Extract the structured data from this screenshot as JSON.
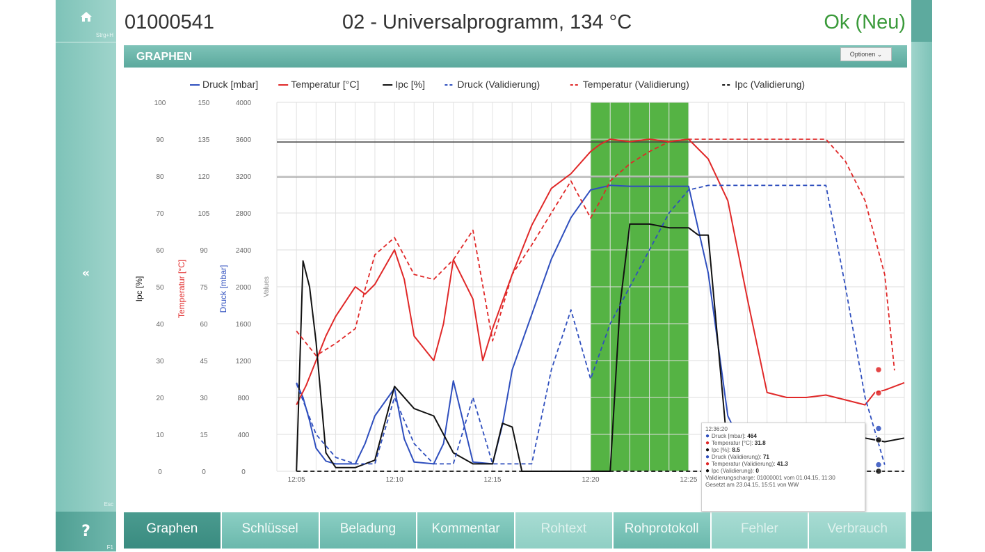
{
  "sidebar": {
    "home_shortcut": "Strg+H",
    "back_shortcut": "Esc",
    "help_label": "?",
    "help_shortcut": "F1",
    "back_glyph": "«"
  },
  "header": {
    "batch_id": "01000541",
    "program": "02 - Universalprogramm, 134 °C",
    "status": "Ok (Neu)"
  },
  "panel": {
    "title": "GRAPHEN",
    "options_label": "Optionen ⌄"
  },
  "chart_data": {
    "type": "line",
    "legend": [
      "Druck [mbar]",
      "Temperatur [°C]",
      "Ipc [%]",
      "Druck (Validierung)",
      "Temperatur (Validierung)",
      "Ipc (Validierung)"
    ],
    "axes": {
      "ipc": {
        "label": "Ipc [%]",
        "ticks": [
          "0",
          "10",
          "20",
          "30",
          "40",
          "50",
          "60",
          "70",
          "80",
          "90",
          "100"
        ],
        "range": [
          0,
          100
        ]
      },
      "temperature": {
        "label": "Temperatur [°C]",
        "ticks": [
          "0",
          "15",
          "30",
          "45",
          "60",
          "75",
          "90",
          "105",
          "120",
          "135",
          "150"
        ],
        "range": [
          0,
          150
        ]
      },
      "pressure": {
        "label": "Druck [mbar]",
        "ticks": [
          "0",
          "400",
          "800",
          "1200",
          "1600",
          "2000",
          "2400",
          "2800",
          "3200",
          "3600",
          "4000"
        ],
        "range": [
          0,
          4000
        ]
      },
      "values_label": "Values",
      "x_label": "",
      "x_ticks": [
        "12:05",
        "12:10",
        "12:15",
        "12:20",
        "12:25"
      ],
      "x_range": [
        "12:04",
        "12:36"
      ]
    },
    "grid": true,
    "colors": {
      "pressure": "#2f4fbe",
      "temperature": "#e02828",
      "ipc": "#111111",
      "plateau": "#4caf3a"
    },
    "plateau": {
      "start": "12:20",
      "end": "12:25"
    },
    "reference_lines_mbar": [
      3570,
      3190
    ],
    "series": [
      {
        "name": "Druck [mbar]",
        "unit": "mbar",
        "style": "solid",
        "color": "#2f4fbe",
        "points": [
          [
            "12:05",
            960
          ],
          [
            "12:05",
            800
          ],
          [
            "12:05",
            550
          ],
          [
            "12:06",
            250
          ],
          [
            "12:06",
            110
          ],
          [
            "12:07",
            80
          ],
          [
            "12:08",
            80
          ],
          [
            "12:08",
            300
          ],
          [
            "12:09",
            600
          ],
          [
            "12:10",
            900
          ],
          [
            "12:10",
            350
          ],
          [
            "12:11",
            100
          ],
          [
            "12:12",
            80
          ],
          [
            "12:12",
            300
          ],
          [
            "12:13",
            980
          ],
          [
            "12:14",
            100
          ],
          [
            "12:15",
            80
          ],
          [
            "12:15",
            500
          ],
          [
            "12:16",
            1100
          ],
          [
            "12:17",
            1700
          ],
          [
            "12:18",
            2300
          ],
          [
            "12:19",
            2750
          ],
          [
            "12:20",
            3050
          ],
          [
            "12:21",
            3100
          ],
          [
            "12:22",
            3090
          ],
          [
            "12:23",
            3090
          ],
          [
            "12:24",
            3090
          ],
          [
            "12:25",
            3090
          ],
          [
            "12:26",
            2150
          ],
          [
            "12:27",
            600
          ],
          [
            "12:27",
            380
          ]
        ]
      },
      {
        "name": "Temperatur [°C]",
        "unit": "°C",
        "style": "solid",
        "color": "#e02828",
        "points": [
          [
            "12:05",
            27
          ],
          [
            "12:05",
            35
          ],
          [
            "12:06",
            45
          ],
          [
            "12:06",
            55
          ],
          [
            "12:07",
            63
          ],
          [
            "12:08",
            75
          ],
          [
            "12:08",
            72
          ],
          [
            "12:09",
            76
          ],
          [
            "12:10",
            90
          ],
          [
            "12:10",
            78
          ],
          [
            "12:11",
            55
          ],
          [
            "12:12",
            45
          ],
          [
            "12:12",
            60
          ],
          [
            "12:13",
            86
          ],
          [
            "12:14",
            70
          ],
          [
            "12:14",
            45
          ],
          [
            "12:15",
            58
          ],
          [
            "12:16",
            80
          ],
          [
            "12:17",
            100
          ],
          [
            "12:18",
            115
          ],
          [
            "12:19",
            121
          ],
          [
            "12:20",
            130
          ],
          [
            "12:20",
            133
          ],
          [
            "12:21",
            135
          ],
          [
            "12:22",
            134
          ],
          [
            "12:23",
            135
          ],
          [
            "12:24",
            134
          ],
          [
            "12:25",
            135
          ],
          [
            "12:26",
            127
          ],
          [
            "12:27",
            110
          ],
          [
            "12:28",
            70
          ],
          [
            "12:29",
            32
          ],
          [
            "12:30",
            30
          ],
          [
            "12:31",
            30
          ],
          [
            "12:32",
            31
          ],
          [
            "12:33",
            29
          ],
          [
            "12:34",
            27
          ],
          [
            "12:34",
            32
          ],
          [
            "12:35",
            33
          ],
          [
            "12:36",
            36
          ]
        ]
      },
      {
        "name": "Ipc [%]",
        "unit": "%",
        "style": "solid",
        "color": "#111111",
        "points": [
          [
            "12:05",
            0
          ],
          [
            "12:05",
            57
          ],
          [
            "12:05",
            50
          ],
          [
            "12:06",
            35
          ],
          [
            "12:06",
            5
          ],
          [
            "12:07",
            1
          ],
          [
            "12:08",
            1
          ],
          [
            "12:09",
            3
          ],
          [
            "12:10",
            23
          ],
          [
            "12:11",
            17
          ],
          [
            "12:12",
            15
          ],
          [
            "12:12",
            10
          ],
          [
            "12:13",
            5
          ],
          [
            "12:14",
            2
          ],
          [
            "12:15",
            2
          ],
          [
            "12:15",
            13
          ],
          [
            "12:16",
            12
          ],
          [
            "12:16",
            0
          ],
          [
            "12:17",
            0
          ],
          [
            "12:18",
            0
          ],
          [
            "12:19",
            0
          ],
          [
            "12:20",
            0
          ],
          [
            "12:21",
            0
          ],
          [
            "12:21",
            45
          ],
          [
            "12:22",
            67
          ],
          [
            "12:23",
            67
          ],
          [
            "12:24",
            66
          ],
          [
            "12:25",
            66
          ],
          [
            "12:25",
            64
          ],
          [
            "12:26",
            64
          ],
          [
            "12:27",
            5
          ],
          [
            "12:33",
            6
          ],
          [
            "12:34",
            9
          ],
          [
            "12:35",
            8
          ],
          [
            "12:36",
            9
          ]
        ]
      },
      {
        "name": "Druck (Validierung)",
        "unit": "mbar",
        "style": "dashed",
        "color": "#2f4fbe",
        "points": [
          [
            "12:05",
            950
          ],
          [
            "12:06",
            400
          ],
          [
            "12:07",
            150
          ],
          [
            "12:08",
            80
          ],
          [
            "12:09",
            80
          ],
          [
            "12:10",
            800
          ],
          [
            "12:11",
            300
          ],
          [
            "12:12",
            80
          ],
          [
            "12:13",
            80
          ],
          [
            "12:14",
            800
          ],
          [
            "12:15",
            80
          ],
          [
            "12:16",
            80
          ],
          [
            "12:17",
            80
          ],
          [
            "12:18",
            1100
          ],
          [
            "12:19",
            1750
          ],
          [
            "12:20",
            1000
          ],
          [
            "12:21",
            1600
          ],
          [
            "12:22",
            2000
          ],
          [
            "12:23",
            2400
          ],
          [
            "12:24",
            2800
          ],
          [
            "12:25",
            3050
          ],
          [
            "12:26",
            3100
          ],
          [
            "12:27",
            3100
          ],
          [
            "12:28",
            3100
          ],
          [
            "12:29",
            3100
          ],
          [
            "12:30",
            3100
          ],
          [
            "12:31",
            3100
          ],
          [
            "12:32",
            3100
          ],
          [
            "12:33",
            2000
          ],
          [
            "12:34",
            800
          ],
          [
            "12:35",
            71
          ]
        ]
      },
      {
        "name": "Temperatur (Validierung)",
        "unit": "°C",
        "style": "dashed",
        "color": "#e02828",
        "points": [
          [
            "12:05",
            57
          ],
          [
            "12:06",
            47
          ],
          [
            "12:07",
            52
          ],
          [
            "12:08",
            58
          ],
          [
            "12:08",
            74
          ],
          [
            "12:09",
            88
          ],
          [
            "12:10",
            95
          ],
          [
            "12:11",
            80
          ],
          [
            "12:12",
            78
          ],
          [
            "12:13",
            86
          ],
          [
            "12:14",
            98
          ],
          [
            "12:15",
            53
          ],
          [
            "12:16",
            80
          ],
          [
            "12:17",
            92
          ],
          [
            "12:18",
            105
          ],
          [
            "12:19",
            118
          ],
          [
            "12:20",
            103
          ],
          [
            "12:20",
            110
          ],
          [
            "12:21",
            118
          ],
          [
            "12:22",
            125
          ],
          [
            "12:23",
            130
          ],
          [
            "12:24",
            134
          ],
          [
            "12:25",
            135
          ],
          [
            "12:26",
            135
          ],
          [
            "12:27",
            135
          ],
          [
            "12:28",
            135
          ],
          [
            "12:29",
            135
          ],
          [
            "12:30",
            135
          ],
          [
            "12:31",
            135
          ],
          [
            "12:32",
            135
          ],
          [
            "12:33",
            126
          ],
          [
            "12:34",
            110
          ],
          [
            "12:35",
            80
          ],
          [
            "12:35",
            41
          ]
        ]
      },
      {
        "name": "Ipc (Validierung)",
        "unit": "%",
        "style": "dashed",
        "color": "#111111",
        "points": [
          [
            "12:05",
            0
          ],
          [
            "12:36",
            0
          ]
        ]
      }
    ],
    "tooltip": {
      "time": "12:36:20",
      "rows": [
        {
          "label": "Druck [mbar]: ",
          "value": "464",
          "color": "#2f4fbe"
        },
        {
          "label": "Temperatur [°C]: ",
          "value": "31.8",
          "color": "#e02828"
        },
        {
          "label": "Ipc [%]: ",
          "value": "8.5",
          "color": "#111111"
        },
        {
          "label": "Druck (Validierung): ",
          "value": "71",
          "color": "#2f4fbe"
        },
        {
          "label": "Temperatur (Validierung): ",
          "value": "41.3",
          "color": "#e02828"
        },
        {
          "label": "Ipc (Validierung): ",
          "value": "0",
          "color": "#111111"
        }
      ],
      "note1": "Validierungscharge: 01000001 vom 01.04.15, 11:30",
      "note2": "Gesetzt am 23.04.15, 15:51 von WW"
    }
  },
  "tabs": [
    {
      "label": "Graphen",
      "state": "active"
    },
    {
      "label": "Schlüssel",
      "state": "normal"
    },
    {
      "label": "Beladung",
      "state": "normal"
    },
    {
      "label": "Kommentar",
      "state": "normal"
    },
    {
      "label": "Rohtext",
      "state": "disabled"
    },
    {
      "label": "Rohprotokoll",
      "state": "normal"
    },
    {
      "label": "Fehler",
      "state": "disabled"
    },
    {
      "label": "Verbrauch",
      "state": "disabled"
    }
  ]
}
